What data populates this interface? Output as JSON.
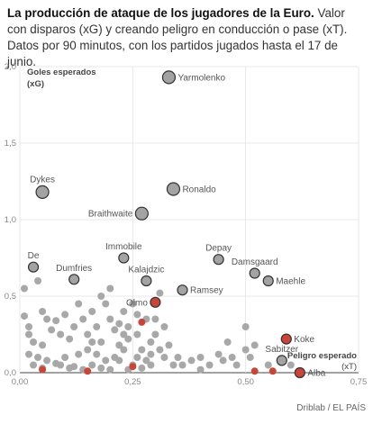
{
  "title": {
    "bold": "La producción de ataque de los jugadores de la Euro.",
    "rest": " Valor con disparos (xG) y creando peligro en conducción o pase (xT). Datos por 90 minutos, con los partidos jugados hasta el 17 de junio."
  },
  "source": "Driblab / EL PAÍS",
  "colors": {
    "highlight": "#c8453a",
    "grey": "#a8a8a8",
    "labeled_fill": "#a3a3a3",
    "stroke": "#333333"
  },
  "chart_data": {
    "type": "scatter",
    "xlim": [
      0,
      0.75
    ],
    "ylim": [
      0,
      2.0
    ],
    "x_ticks": [
      "0,00",
      "0,25",
      "0,50",
      "0,75"
    ],
    "x_tick_values": [
      0,
      0.25,
      0.5,
      0.75
    ],
    "y_ticks": [
      "0,0",
      "0,5",
      "1,0",
      "1,5",
      "2,0"
    ],
    "y_tick_values": [
      0,
      0.5,
      1.0,
      1.5,
      2.0
    ],
    "ylabel_line1": "Goles esperados",
    "ylabel_line2": "(xG)",
    "xlabel_line1": "Peligro esperado",
    "xlabel_line2": "(xT)",
    "grid": true,
    "labeled_points": [
      {
        "name": "Yarmolenko",
        "x": 0.33,
        "y": 1.93,
        "side": "right",
        "highlight": false
      },
      {
        "name": "Dykes",
        "x": 0.05,
        "y": 1.18,
        "side": "top",
        "highlight": false
      },
      {
        "name": "Ronaldo",
        "x": 0.34,
        "y": 1.2,
        "side": "right",
        "highlight": false
      },
      {
        "name": "Braithwaite",
        "x": 0.27,
        "y": 1.04,
        "side": "left",
        "highlight": false
      },
      {
        "name": "De",
        "x": 0.03,
        "y": 0.69,
        "side": "top",
        "highlight": false
      },
      {
        "name": "Dumfries",
        "x": 0.12,
        "y": 0.61,
        "side": "top",
        "highlight": false
      },
      {
        "name": "Immobile",
        "x": 0.23,
        "y": 0.75,
        "side": "top",
        "highlight": false
      },
      {
        "name": "Kalajdzic",
        "x": 0.28,
        "y": 0.6,
        "side": "top",
        "highlight": false
      },
      {
        "name": "Depay",
        "x": 0.44,
        "y": 0.74,
        "side": "top",
        "highlight": false
      },
      {
        "name": "Damsgaard",
        "x": 0.52,
        "y": 0.65,
        "side": "top",
        "highlight": false
      },
      {
        "name": "Maehle",
        "x": 0.55,
        "y": 0.6,
        "side": "right",
        "highlight": false
      },
      {
        "name": "Ramsey",
        "x": 0.36,
        "y": 0.54,
        "side": "right",
        "highlight": false
      },
      {
        "name": "Olmo",
        "x": 0.3,
        "y": 0.46,
        "side": "left",
        "highlight": true
      },
      {
        "name": "Koke",
        "x": 0.59,
        "y": 0.22,
        "side": "right",
        "highlight": true
      },
      {
        "name": "Sabitzer",
        "x": 0.58,
        "y": 0.08,
        "side": "top",
        "highlight": false
      },
      {
        "name": "Alba",
        "x": 0.62,
        "y": 0.0,
        "side": "right",
        "highlight": true
      }
    ],
    "other_points": [
      [
        0.01,
        0.55
      ],
      [
        0.01,
        0.37
      ],
      [
        0.02,
        0.3
      ],
      [
        0.02,
        0.25
      ],
      [
        0.03,
        0.2
      ],
      [
        0.05,
        0.4
      ],
      [
        0.06,
        0.35
      ],
      [
        0.04,
        0.6
      ],
      [
        0.07,
        0.28
      ],
      [
        0.05,
        0.18
      ],
      [
        0.08,
        0.34
      ],
      [
        0.1,
        0.38
      ],
      [
        0.09,
        0.25
      ],
      [
        0.12,
        0.3
      ],
      [
        0.13,
        0.45
      ],
      [
        0.11,
        0.22
      ],
      [
        0.14,
        0.35
      ],
      [
        0.15,
        0.25
      ],
      [
        0.16,
        0.4
      ],
      [
        0.17,
        0.3
      ],
      [
        0.18,
        0.2
      ],
      [
        0.19,
        0.45
      ],
      [
        0.2,
        0.35
      ],
      [
        0.21,
        0.28
      ],
      [
        0.22,
        0.18
      ],
      [
        0.2,
        0.55
      ],
      [
        0.18,
        0.5
      ],
      [
        0.15,
        0.15
      ],
      [
        0.13,
        0.12
      ],
      [
        0.1,
        0.1
      ],
      [
        0.23,
        0.4
      ],
      [
        0.24,
        0.3
      ],
      [
        0.25,
        0.45
      ],
      [
        0.26,
        0.38
      ],
      [
        0.24,
        0.22
      ],
      [
        0.23,
        0.15
      ],
      [
        0.22,
        0.08
      ],
      [
        0.26,
        0.25
      ],
      [
        0.27,
        0.15
      ],
      [
        0.28,
        0.35
      ],
      [
        0.29,
        0.2
      ],
      [
        0.3,
        0.25
      ],
      [
        0.31,
        0.15
      ],
      [
        0.32,
        0.1
      ],
      [
        0.31,
        0.52
      ],
      [
        0.29,
        0.05
      ],
      [
        0.28,
        0.08
      ],
      [
        0.33,
        0.18
      ],
      [
        0.35,
        0.1
      ],
      [
        0.36,
        0.05
      ],
      [
        0.38,
        0.08
      ],
      [
        0.4,
        0.1
      ],
      [
        0.42,
        0.05
      ],
      [
        0.45,
        0.08
      ],
      [
        0.48,
        0.05
      ],
      [
        0.5,
        0.15
      ],
      [
        0.5,
        0.3
      ],
      [
        0.51,
        0.1
      ],
      [
        0.52,
        0.18
      ],
      [
        0.55,
        0.05
      ],
      [
        0.6,
        0.05
      ],
      [
        0.4,
        0.02
      ],
      [
        0.44,
        0.12
      ],
      [
        0.46,
        0.2
      ],
      [
        0.47,
        0.1
      ],
      [
        0.3,
        0.35
      ],
      [
        0.32,
        0.3
      ],
      [
        0.34,
        0.05
      ],
      [
        0.25,
        0.05
      ],
      [
        0.21,
        0.1
      ],
      [
        0.19,
        0.08
      ],
      [
        0.17,
        0.12
      ],
      [
        0.16,
        0.05
      ],
      [
        0.12,
        0.04
      ],
      [
        0.08,
        0.06
      ],
      [
        0.06,
        0.08
      ],
      [
        0.04,
        0.1
      ],
      [
        0.02,
        0.12
      ],
      [
        0.03,
        0.05
      ],
      [
        0.05,
        0.03
      ],
      [
        0.09,
        0.05
      ],
      [
        0.11,
        0.03
      ],
      [
        0.14,
        0.02
      ],
      [
        0.18,
        0.03
      ],
      [
        0.2,
        0.02
      ],
      [
        0.24,
        0.02
      ],
      [
        0.27,
        0.03
      ],
      [
        0.29,
        0.12
      ],
      [
        0.23,
        0.25
      ],
      [
        0.26,
        0.1
      ],
      [
        0.22,
        0.32
      ],
      [
        0.16,
        0.2
      ]
    ],
    "red_small_points": [
      [
        0.05,
        0.02
      ],
      [
        0.15,
        0.01
      ],
      [
        0.25,
        0.04
      ],
      [
        0.27,
        0.33
      ],
      [
        0.52,
        0.01
      ],
      [
        0.56,
        0.01
      ]
    ]
  }
}
